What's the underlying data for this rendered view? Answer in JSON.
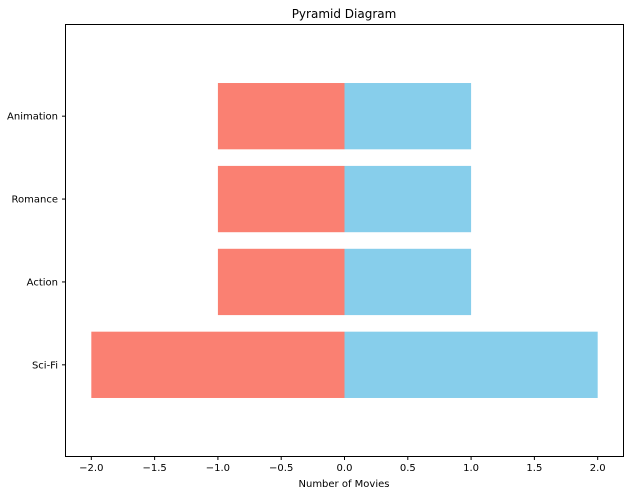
{
  "chart_data": {
    "type": "bar",
    "orientation": "horizontal",
    "stacking": "diverging",
    "title": "Pyramid Diagram",
    "xlabel": "Number of Movies",
    "ylabel": "",
    "categories": [
      "Sci-Fi",
      "Action",
      "Romance",
      "Animation"
    ],
    "series": [
      {
        "values": [
          -2,
          -1,
          -1,
          -1
        ],
        "color": "#fa8072"
      },
      {
        "values": [
          2,
          1,
          1,
          1
        ],
        "color": "#87ceeb"
      }
    ],
    "xlim": [
      -2.2,
      2.2
    ],
    "x_ticks": [
      -2.0,
      -1.5,
      -1.0,
      -0.5,
      0.0,
      0.5,
      1.0,
      1.5,
      2.0
    ],
    "x_tick_labels": [
      "−2.0",
      "−1.5",
      "−1.0",
      "−0.5",
      "0.0",
      "0.5",
      "1.0",
      "1.5",
      "2.0"
    ],
    "grid": false,
    "legend": "none"
  }
}
